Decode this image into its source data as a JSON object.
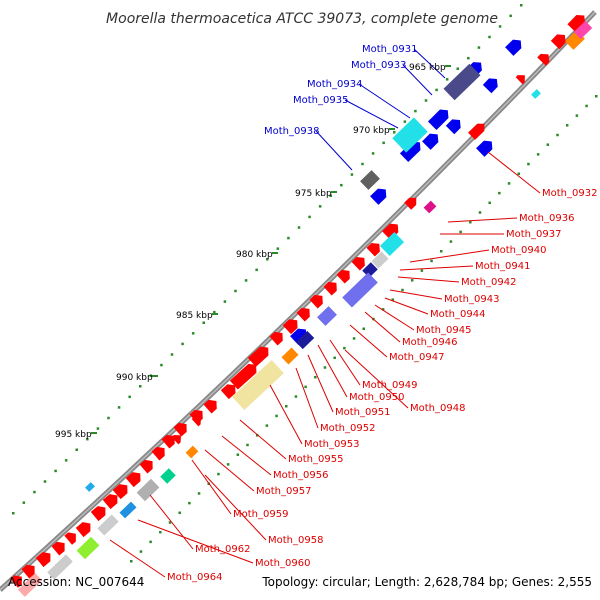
{
  "title": "Moorella thermoacetica ATCC 39073, complete genome",
  "accession": "Accession: NC_007644",
  "summary": "Topology: circular; Length: 2,628,784 bp; Genes: 2,555",
  "kbp_ticks": [
    "965 kbp",
    "970 kbp",
    "975 kbp",
    "980 kbp",
    "985 kbp",
    "990 kbp",
    "995 kbp"
  ],
  "gene_labels_blue": [
    "Moth_0931",
    "Moth_0933",
    "Moth_0934",
    "Moth_0935",
    "Moth_0938"
  ],
  "gene_labels_red": [
    "Moth_0932",
    "Moth_0936",
    "Moth_0937",
    "Moth_0940",
    "Moth_0941",
    "Moth_0942",
    "Moth_0943",
    "Moth_0944",
    "Moth_0945",
    "Moth_0946",
    "Moth_0947",
    "Moth_0949",
    "Moth_0950",
    "Moth_0948",
    "Moth_0951",
    "Moth_0952",
    "Moth_0953",
    "Moth_0955",
    "Moth_0956",
    "Moth_0957",
    "Moth_0959",
    "Moth_0958",
    "Moth_0962",
    "Moth_0960",
    "Moth_0964"
  ],
  "colors": {
    "plus_strand": "#0000ee",
    "minus_strand": "#ff0000",
    "backbone": "#888888",
    "tick": "#2a8a2a",
    "label_blue": "#0000cc",
    "label_red": "#dd0000"
  }
}
